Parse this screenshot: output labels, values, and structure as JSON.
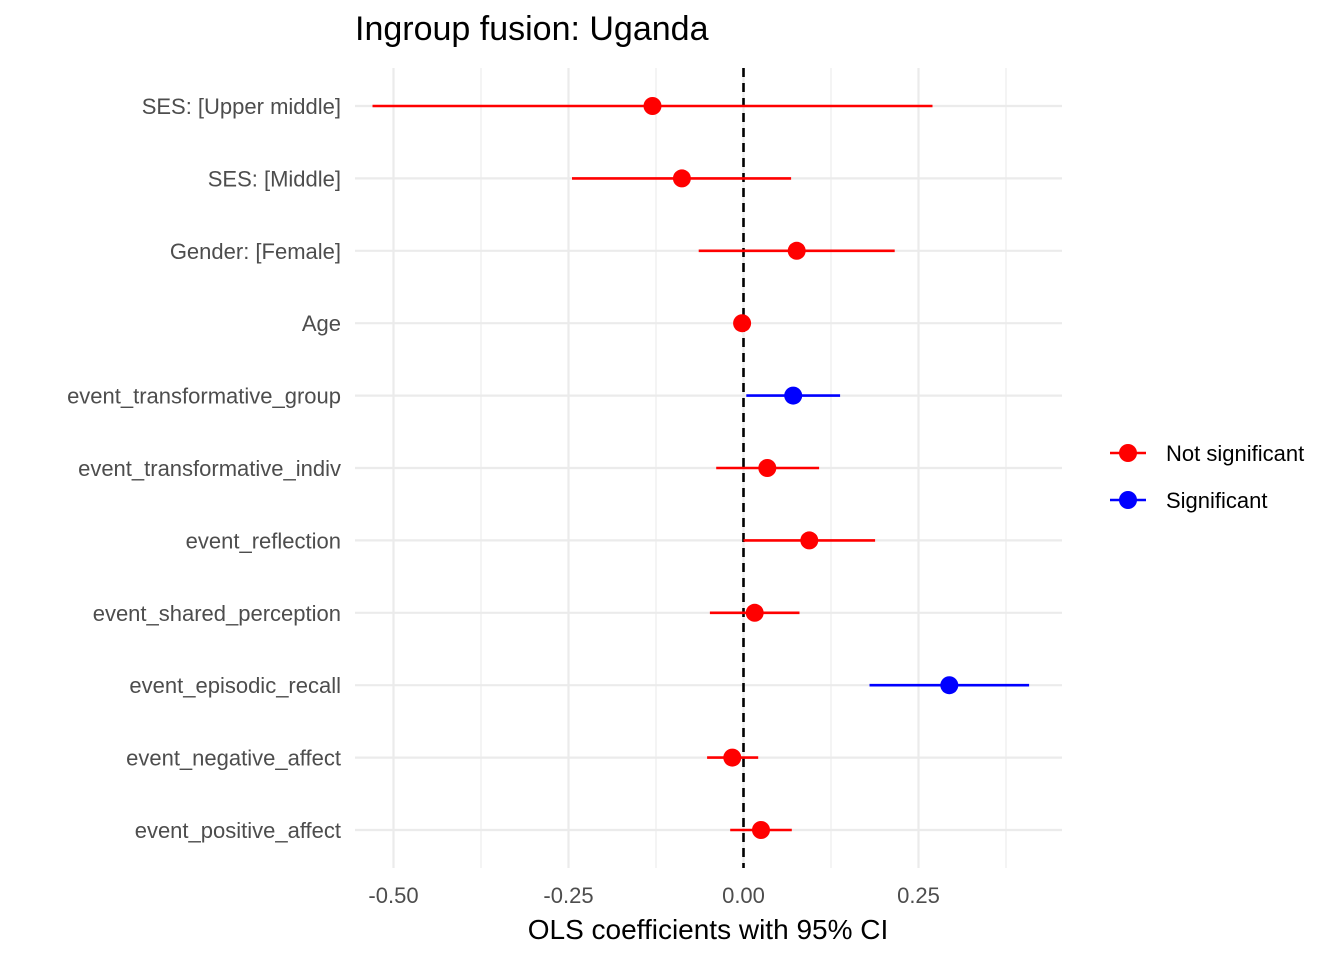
{
  "chart_data": {
    "type": "scatter",
    "subtype": "coefficient-plot",
    "title": "Ingroup fusion: Uganda",
    "xlabel": "OLS coefficients with 95% CI",
    "ylabel": "",
    "xlim": [
      -0.555,
      0.455
    ],
    "xticks": [
      -0.5,
      -0.25,
      0.0,
      0.25
    ],
    "xtick_labels": [
      "-0.50",
      "-0.25",
      "0.00",
      "0.25"
    ],
    "reference_line": 0,
    "grid": true,
    "legend_position": "right",
    "legend": [
      {
        "label": "Not significant",
        "color": "#ff0000"
      },
      {
        "label": "Significant",
        "color": "#0000ff"
      }
    ],
    "colors": {
      "Not significant": "#ff0000",
      "Significant": "#0000ff"
    },
    "terms": [
      {
        "label": "SES:  [Upper middle]",
        "estimate": -0.13,
        "ci_low": -0.53,
        "ci_high": 0.27,
        "group": "Not significant"
      },
      {
        "label": "SES:  [Middle]",
        "estimate": -0.088,
        "ci_low": -0.245,
        "ci_high": 0.068,
        "group": "Not significant"
      },
      {
        "label": "Gender:  [Female]",
        "estimate": 0.076,
        "ci_low": -0.064,
        "ci_high": 0.216,
        "group": "Not significant"
      },
      {
        "label": "Age",
        "estimate": -0.002,
        "ci_low": -0.008,
        "ci_high": 0.004,
        "group": "Not significant"
      },
      {
        "label": "event_transformative_group",
        "estimate": 0.071,
        "ci_low": 0.004,
        "ci_high": 0.138,
        "group": "Significant"
      },
      {
        "label": "event_transformative_indiv",
        "estimate": 0.034,
        "ci_low": -0.039,
        "ci_high": 0.108,
        "group": "Not significant"
      },
      {
        "label": "event_reflection",
        "estimate": 0.094,
        "ci_low": 0.0,
        "ci_high": 0.188,
        "group": "Not significant"
      },
      {
        "label": "event_shared_perception",
        "estimate": 0.016,
        "ci_low": -0.048,
        "ci_high": 0.08,
        "group": "Not significant"
      },
      {
        "label": "event_episodic_recall",
        "estimate": 0.294,
        "ci_low": 0.18,
        "ci_high": 0.408,
        "group": "Significant"
      },
      {
        "label": "event_negative_affect",
        "estimate": -0.016,
        "ci_low": -0.052,
        "ci_high": 0.021,
        "group": "Not significant"
      },
      {
        "label": "event_positive_affect",
        "estimate": 0.025,
        "ci_low": -0.019,
        "ci_high": 0.069,
        "group": "Not significant"
      }
    ]
  }
}
